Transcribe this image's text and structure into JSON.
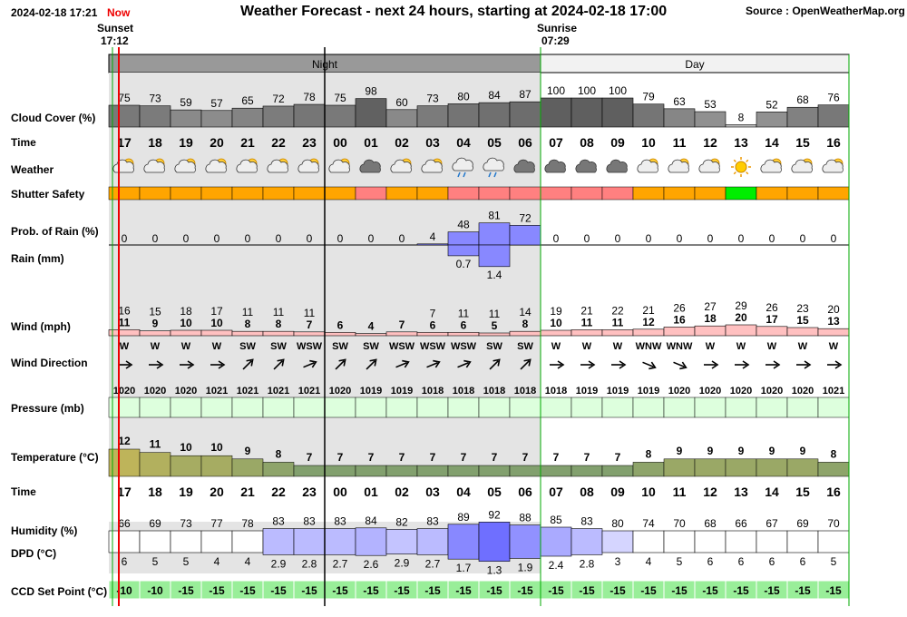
{
  "header": {
    "datetime": "2024-02-18 17:21",
    "now_label": "Now",
    "title": "Weather Forecast - next 24 hours, starting at 2024-02-18 17:00",
    "source": "Source : OpenWeatherMap.org",
    "sunset_label": "Sunset",
    "sunset_time": "17:12",
    "sunrise_label": "Sunrise",
    "sunrise_time": "07:29",
    "night_label": "Night",
    "day_label": "Day"
  },
  "row_labels": {
    "cloud": "Cloud Cover (%)",
    "time": "Time",
    "weather": "Weather",
    "shutter": "Shutter Safety",
    "prob_rain": "Prob. of Rain (%)",
    "rain": "Rain (mm)",
    "wind": "Wind (mph)",
    "wind_dir": "Wind Direction",
    "pressure": "Pressure (mb)",
    "temperature": "Temperature (°C)",
    "time2": "Time",
    "humidity": "Humidity (%)",
    "dpd": "DPD (°C)",
    "ccd": "CCD Set Point (°C)"
  },
  "colors": {
    "night_bg": "#e4e4e4",
    "shutter_orange": "#ffa500",
    "shutter_red": "#ff8080",
    "shutter_green": "#00ee00",
    "rain_blue": "#8888ff",
    "ccd_green": "#99ee99",
    "pressure_green": "#ddffdd",
    "now_line": "#ee0000",
    "sun_line": "#00aa00"
  },
  "chart_data": {
    "type": "table",
    "hours": [
      "17",
      "18",
      "19",
      "20",
      "21",
      "22",
      "23",
      "00",
      "01",
      "02",
      "03",
      "04",
      "05",
      "06",
      "07",
      "08",
      "09",
      "10",
      "11",
      "12",
      "13",
      "14",
      "15",
      "16"
    ],
    "night_hours": 14,
    "cloud_cover": [
      75,
      73,
      59,
      57,
      65,
      72,
      78,
      75,
      98,
      60,
      73,
      80,
      84,
      87,
      100,
      100,
      100,
      79,
      63,
      53,
      8,
      52,
      68,
      76
    ],
    "weather_icons": [
      "partly-cloudy-icon",
      "partly-cloudy-icon",
      "partly-cloudy-icon",
      "partly-cloudy-icon",
      "partly-cloudy-icon",
      "partly-cloudy-icon",
      "partly-cloudy-icon",
      "partly-cloudy-icon",
      "overcast-icon",
      "partly-cloudy-icon",
      "partly-cloudy-icon",
      "rain-icon",
      "rain-icon",
      "overcast-icon",
      "overcast-icon",
      "overcast-icon",
      "overcast-icon",
      "partly-cloudy-icon",
      "partly-cloudy-icon",
      "partly-cloudy-icon",
      "sun-icon",
      "partly-cloudy-icon",
      "partly-cloudy-icon",
      "partly-cloudy-icon"
    ],
    "shutter_safety": [
      "orange",
      "orange",
      "orange",
      "orange",
      "orange",
      "orange",
      "orange",
      "orange",
      "red",
      "orange",
      "orange",
      "red",
      "red",
      "red",
      "red",
      "red",
      "red",
      "orange",
      "orange",
      "orange",
      "green",
      "orange",
      "orange",
      "orange"
    ],
    "prob_rain": [
      0,
      0,
      0,
      0,
      0,
      0,
      0,
      0,
      0,
      0,
      4,
      48,
      81,
      72,
      0,
      0,
      0,
      0,
      0,
      0,
      0,
      0,
      0,
      0
    ],
    "rain_mm": [
      null,
      null,
      null,
      null,
      null,
      null,
      null,
      null,
      null,
      null,
      null,
      0.7,
      1.4,
      null,
      null,
      null,
      null,
      null,
      null,
      null,
      null,
      null,
      null,
      null
    ],
    "wind_gust": [
      16,
      15,
      18,
      17,
      11,
      11,
      11,
      null,
      null,
      null,
      7,
      11,
      11,
      14,
      19,
      21,
      22,
      21,
      26,
      27,
      29,
      26,
      23,
      20
    ],
    "wind_speed": [
      11,
      9,
      10,
      10,
      8,
      8,
      7,
      6,
      4,
      7,
      6,
      6,
      5,
      8,
      10,
      11,
      11,
      12,
      16,
      18,
      20,
      17,
      15,
      13
    ],
    "wind_dir": [
      "W",
      "W",
      "W",
      "W",
      "SW",
      "SW",
      "WSW",
      "SW",
      "SW",
      "WSW",
      "WSW",
      "WSW",
      "SW",
      "SW",
      "W",
      "W",
      "W",
      "WNW",
      "WNW",
      "W",
      "W",
      "W",
      "W",
      "W"
    ],
    "pressure": [
      1020,
      1020,
      1020,
      1021,
      1021,
      1021,
      1021,
      1020,
      1019,
      1019,
      1018,
      1018,
      1018,
      1018,
      1018,
      1019,
      1019,
      1019,
      1020,
      1020,
      1020,
      1020,
      1020,
      1021
    ],
    "temperature": [
      12,
      11,
      10,
      10,
      9,
      8,
      7,
      7,
      7,
      7,
      7,
      7,
      7,
      7,
      7,
      7,
      7,
      8,
      9,
      9,
      9,
      9,
      9,
      8
    ],
    "humidity": [
      66,
      69,
      73,
      77,
      78,
      83,
      83,
      83,
      84,
      82,
      83,
      89,
      92,
      88,
      85,
      83,
      80,
      74,
      70,
      68,
      66,
      67,
      69,
      70
    ],
    "dpd": [
      "6",
      "5",
      "5",
      "4",
      "4",
      "2.9",
      "2.8",
      "2.7",
      "2.6",
      "2.9",
      "2.7",
      "1.7",
      "1.3",
      "1.9",
      "2.4",
      "2.8",
      "3",
      "4",
      "5",
      "6",
      "6",
      "6",
      "6",
      "5"
    ],
    "ccd_set_point": [
      -10,
      -10,
      -15,
      -15,
      -15,
      -15,
      -15,
      -15,
      -15,
      -15,
      -15,
      -15,
      -15,
      -15,
      -15,
      -15,
      -15,
      -15,
      -15,
      -15,
      -15,
      -15,
      -15,
      -15
    ]
  }
}
